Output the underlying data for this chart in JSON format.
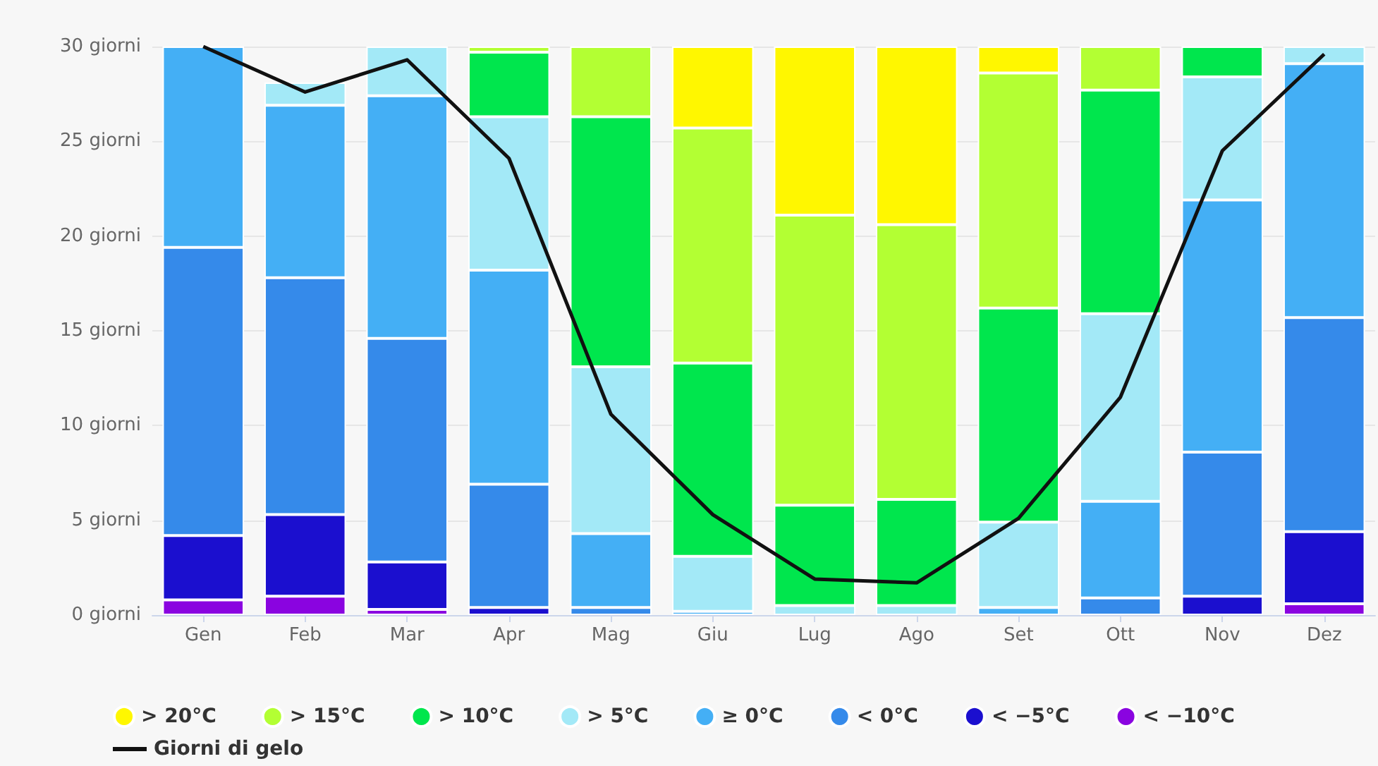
{
  "chart_data": {
    "type": "bar",
    "stacked": true,
    "categories": [
      "Gen",
      "Feb",
      "Mar",
      "Apr",
      "Mag",
      "Giu",
      "Lug",
      "Ago",
      "Set",
      "Ott",
      "Nov",
      "Dez"
    ],
    "series": [
      {
        "name": "< −10°C",
        "color": "#8a04e0",
        "values": [
          0.8,
          1.0,
          0.3,
          null,
          null,
          null,
          null,
          null,
          null,
          null,
          null,
          0.6
        ]
      },
      {
        "name": "< −5°C",
        "color": "#1b0fcf",
        "values": [
          3.4,
          4.3,
          2.5,
          0.4,
          null,
          null,
          null,
          null,
          null,
          null,
          1.0,
          3.8
        ]
      },
      {
        "name": "< 0°C",
        "color": "#358aea",
        "values": [
          15.2,
          12.5,
          11.8,
          6.5,
          0.4,
          null,
          null,
          null,
          null,
          0.9,
          7.6,
          11.3
        ]
      },
      {
        "name": "≥ 0°C",
        "color": "#44aff5",
        "values": [
          10.6,
          9.1,
          12.8,
          11.3,
          3.9,
          0.2,
          null,
          null,
          0.4,
          5.1,
          13.3,
          13.4
        ]
      },
      {
        "name": "> 5°C",
        "color": "#a3e9f7",
        "values": [
          null,
          1.2,
          2.6,
          8.1,
          8.8,
          2.9,
          0.5,
          0.5,
          4.5,
          9.9,
          6.5,
          0.9
        ]
      },
      {
        "name": "> 10°C",
        "color": "#00e64d",
        "values": [
          null,
          null,
          null,
          3.4,
          13.2,
          10.2,
          5.3,
          5.6,
          11.3,
          11.8,
          1.6,
          null
        ]
      },
      {
        "name": "> 15°C",
        "color": "#b3ff33",
        "values": [
          null,
          null,
          null,
          0.3,
          3.7,
          12.4,
          15.3,
          14.5,
          12.4,
          2.3,
          null,
          null
        ]
      },
      {
        "name": "> 20°C",
        "color": "#fff700",
        "values": [
          null,
          null,
          null,
          null,
          null,
          4.3,
          8.9,
          9.4,
          1.4,
          null,
          null,
          null
        ]
      },
      {
        "name": "Giorni di gelo",
        "type": "line",
        "color": "#111111",
        "marker": "none",
        "values": [
          30,
          27.6,
          29.3,
          24.1,
          10.6,
          5.3,
          1.9,
          1.7,
          5.1,
          11.5,
          24.5,
          29.6
        ]
      }
    ],
    "ylim": [
      0,
      30
    ],
    "yticks": [
      {
        "value": 0,
        "label": "0 giorni"
      },
      {
        "value": 5,
        "label": "5 giorni"
      },
      {
        "value": 10,
        "label": "10 giorni"
      },
      {
        "value": 15,
        "label": "15 giorni"
      },
      {
        "value": 20,
        "label": "20 giorni"
      },
      {
        "value": 25,
        "label": "25 giorni"
      },
      {
        "value": 30,
        "label": "30 giorni"
      }
    ],
    "grid": "y",
    "legend": "bottom"
  }
}
